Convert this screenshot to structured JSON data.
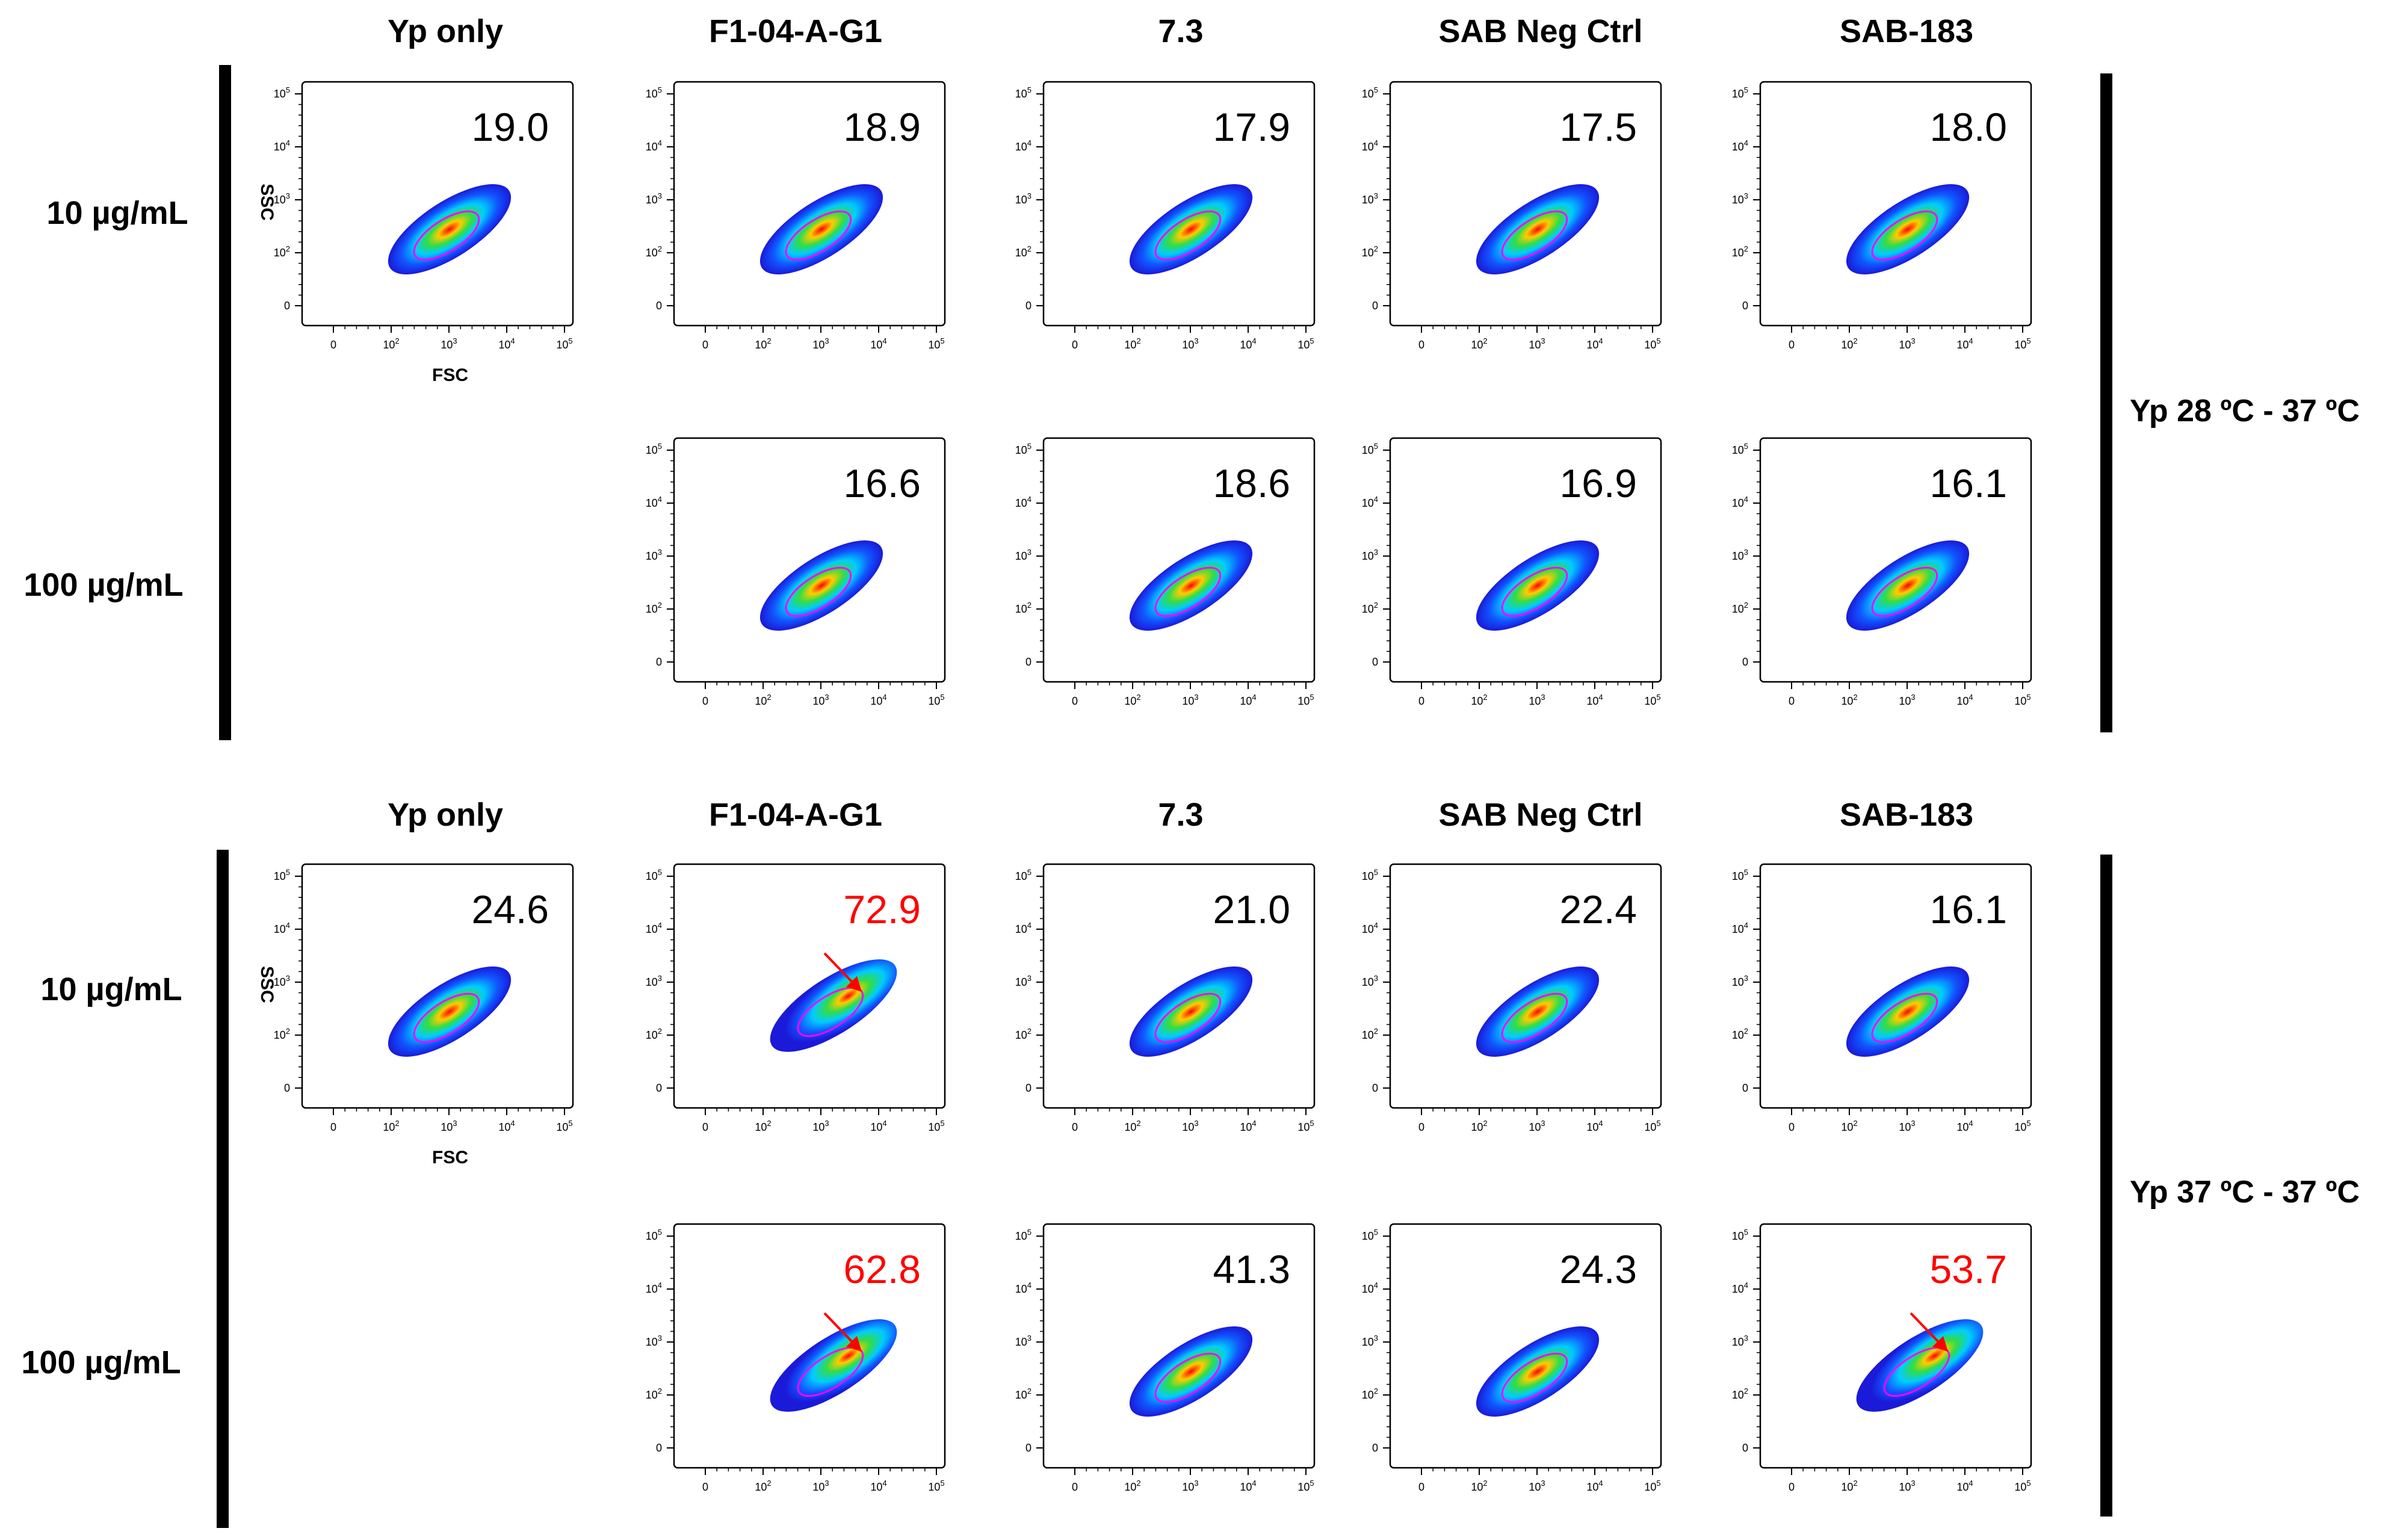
{
  "chart_data": {
    "type": "flow-cytometry-density-panel-grid",
    "x_axis": {
      "label": "FSC",
      "ticks": [
        "0",
        "10^2",
        "10^3",
        "10^4",
        "10^5"
      ]
    },
    "y_axis": {
      "label": "SSC",
      "ticks": [
        "0",
        "10^2",
        "10^3",
        "10^4",
        "10^5"
      ]
    },
    "groups": [
      {
        "condition": "Yp 28 ºC - 37 ºC",
        "columns": [
          "Yp only",
          "F1-04-A-G1",
          "7.3",
          "SAB Neg Ctrl",
          "SAB-183"
        ],
        "rows": [
          {
            "concentration": "10 µg/mL",
            "values": [
              "19.0",
              "18.9",
              "17.9",
              "17.5",
              "18.0"
            ],
            "highlight": [
              false,
              false,
              false,
              false,
              false
            ]
          },
          {
            "concentration": "100 µg/mL",
            "values": [
              null,
              "16.6",
              "18.6",
              "16.9",
              "16.1"
            ],
            "highlight": [
              false,
              false,
              false,
              false,
              false
            ]
          }
        ]
      },
      {
        "condition": "Yp 37 ºC - 37 ºC",
        "columns": [
          "Yp only",
          "F1-04-A-G1",
          "7.3",
          "SAB Neg Ctrl",
          "SAB-183"
        ],
        "rows": [
          {
            "concentration": "10 µg/mL",
            "values": [
              "24.6",
              "72.9",
              "21.0",
              "22.4",
              "16.1"
            ],
            "highlight": [
              false,
              true,
              false,
              false,
              false
            ]
          },
          {
            "concentration": "100 µg/mL",
            "values": [
              null,
              "62.8",
              "41.3",
              "24.3",
              "53.7"
            ],
            "highlight": [
              false,
              true,
              false,
              false,
              true
            ]
          }
        ]
      }
    ]
  },
  "colors": {
    "highlight": "#ff0000",
    "normal": "#000000",
    "gate": "#ff00ff"
  }
}
